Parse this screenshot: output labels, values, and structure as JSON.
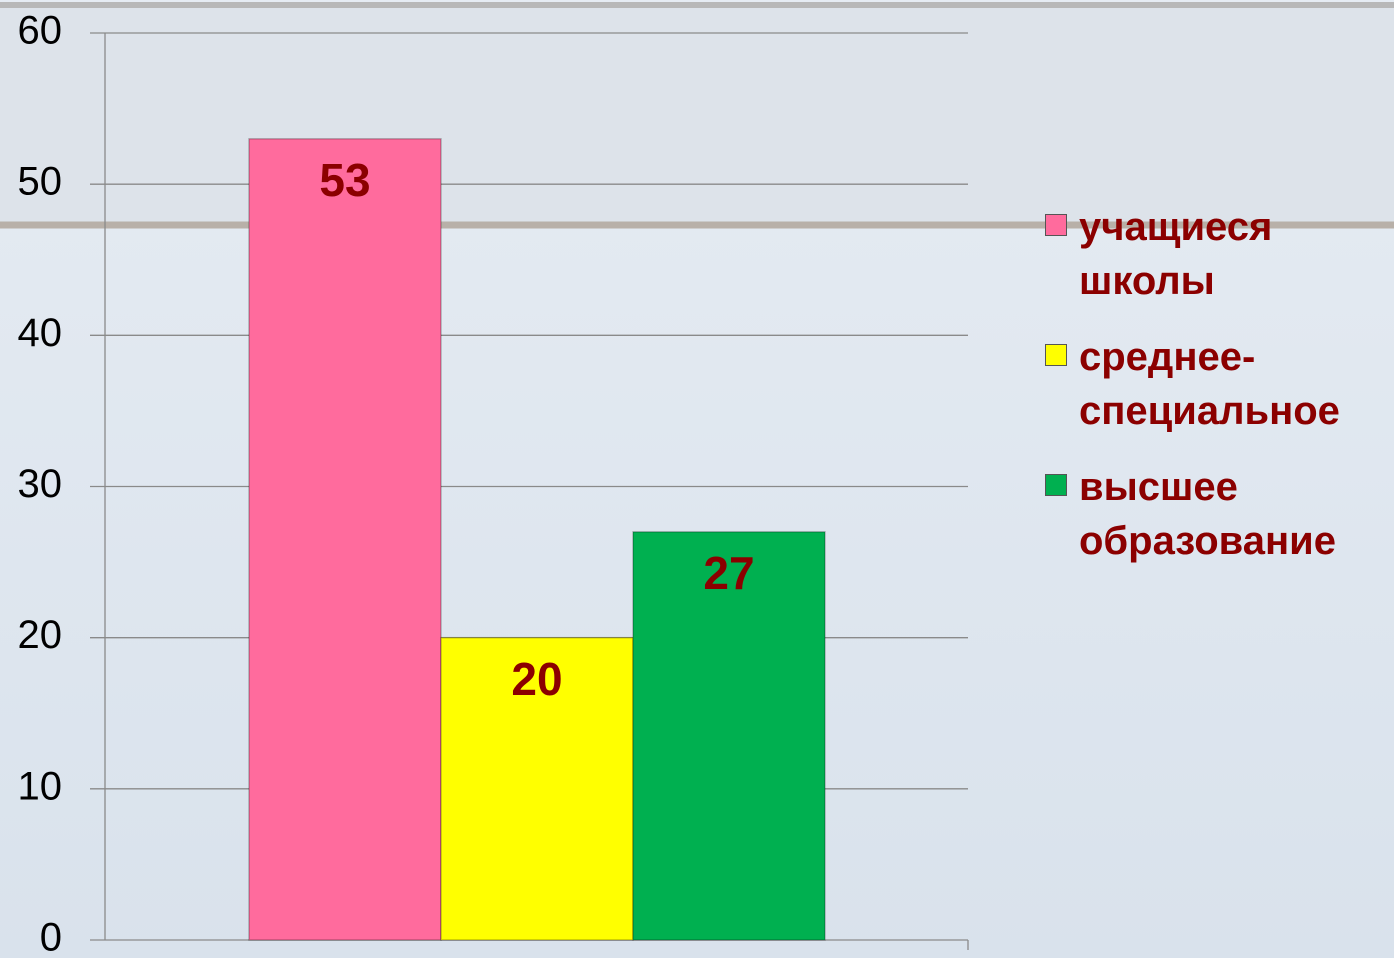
{
  "chart_data": {
    "type": "bar",
    "series": [
      {
        "name": "учащиеся школы",
        "color": "#ff6b9d",
        "values": [
          53
        ]
      },
      {
        "name": "среднее-специальное",
        "color": "#ffff00",
        "values": [
          20
        ]
      },
      {
        "name": "высшее образование",
        "color": "#00b050",
        "values": [
          27
        ]
      }
    ],
    "ylim": [
      0,
      60
    ],
    "yticks": [
      0,
      10,
      20,
      30,
      40,
      50,
      60
    ],
    "grid": true,
    "legend": "right"
  }
}
